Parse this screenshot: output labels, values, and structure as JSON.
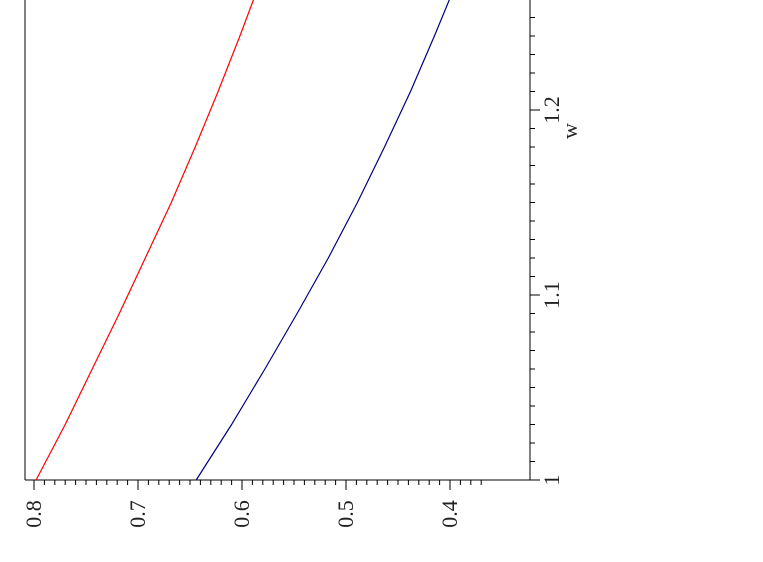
{
  "chart_data": {
    "type": "line",
    "orientation": "rotated-90-ccw",
    "xlabel": "w",
    "ylabel": "",
    "xlim": [
      1.0,
      1.27
    ],
    "ylim": [
      0.37,
      0.81
    ],
    "x_ticks": [
      {
        "value": 1.0,
        "label": "1"
      },
      {
        "value": 1.1,
        "label": "1.1"
      },
      {
        "value": 1.2,
        "label": "1.2"
      }
    ],
    "y_ticks": [
      {
        "value": 0.8,
        "label": "0.8"
      },
      {
        "value": 0.7,
        "label": "0.7"
      },
      {
        "value": 0.6,
        "label": "0.6"
      },
      {
        "value": 0.5,
        "label": "0.5"
      },
      {
        "value": 0.4,
        "label": "0.4"
      }
    ],
    "series": [
      {
        "color": "#ff0000",
        "x": [
          1.0,
          1.03,
          1.06,
          1.09,
          1.12,
          1.15,
          1.18,
          1.21,
          1.24,
          1.27
        ],
        "y": [
          0.798,
          0.77,
          0.744,
          0.718,
          0.693,
          0.668,
          0.645,
          0.623,
          0.602,
          0.582
        ]
      },
      {
        "color": "#000080",
        "x": [
          1.0,
          1.03,
          1.06,
          1.09,
          1.12,
          1.15,
          1.18,
          1.21,
          1.24,
          1.27
        ],
        "y": [
          0.644,
          0.61,
          0.578,
          0.547,
          0.517,
          0.489,
          0.463,
          0.438,
          0.415,
          0.393
        ]
      }
    ],
    "grid": false,
    "legend": "none"
  }
}
